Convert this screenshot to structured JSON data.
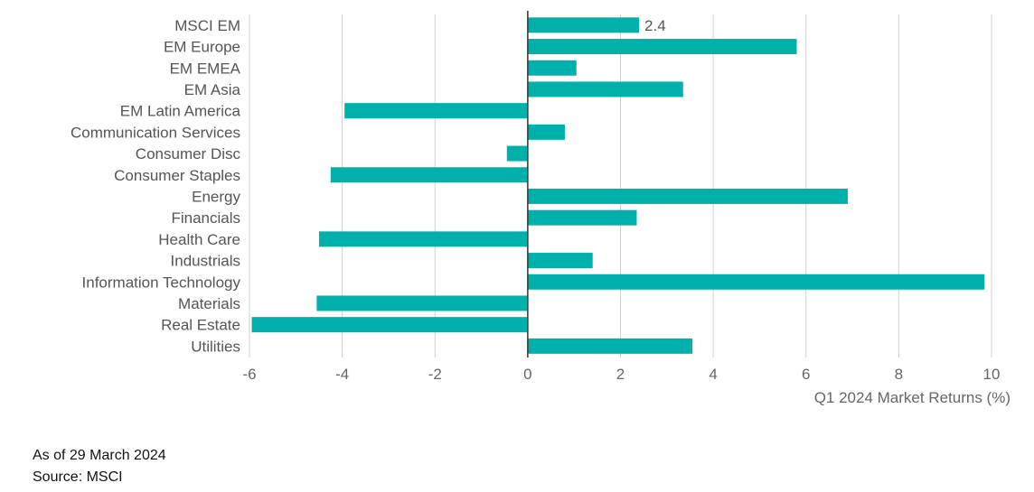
{
  "chart_data": {
    "type": "bar",
    "orientation": "horizontal",
    "categories": [
      "MSCI EM",
      "EM Europe",
      "EM EMEA",
      "EM Asia",
      "EM Latin America",
      "Communication Services",
      "Consumer Disc",
      "Consumer Staples",
      "Energy",
      "Financials",
      "Health Care",
      "Industrials",
      "Information Technology",
      "Materials",
      "Real Estate",
      "Utilities"
    ],
    "values": [
      2.4,
      5.8,
      1.05,
      3.35,
      -3.95,
      0.8,
      -0.45,
      -4.25,
      6.9,
      2.35,
      -4.5,
      1.4,
      9.85,
      -4.55,
      -5.95,
      3.55
    ],
    "data_labels": [
      {
        "index": 0,
        "text": "2.4"
      }
    ],
    "xlabel": "Q1 2024 Market Returns (%)",
    "xlim": [
      -6,
      10
    ],
    "xticks": [
      -6,
      -4,
      -2,
      0,
      2,
      4,
      6,
      8,
      10
    ],
    "grid": "vertical",
    "colors": {
      "bar": "#00b0ab",
      "grid": "#d0d0d0",
      "zero_line": "#333333"
    }
  },
  "notes": {
    "date": "As of 29 March 2024",
    "source": "Source: MSCI"
  }
}
